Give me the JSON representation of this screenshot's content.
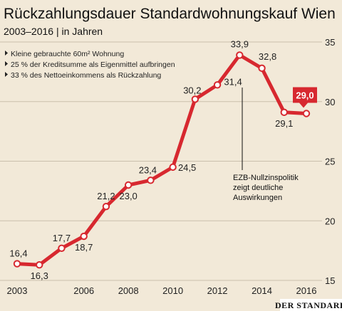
{
  "chart_data": {
    "type": "line",
    "title": "Rückzahlungsdauer Standardwohnungskauf Wien",
    "subtitle": "2003–2016 | in Jahren",
    "notes": [
      "Kleine gebrauchte 60m² Wohnung",
      "25 % der Kreditsumme als Eigenmittel aufbringen",
      "33 % des Nettoeinkommens als Rückzahlung"
    ],
    "x": [
      2003,
      2004,
      2005,
      2006,
      2007,
      2008,
      2009,
      2010,
      2011,
      2012,
      2013,
      2014,
      2015,
      2016
    ],
    "values": [
      16.4,
      16.3,
      17.7,
      18.7,
      21.2,
      23.0,
      23.4,
      24.5,
      30.2,
      31.4,
      33.9,
      32.8,
      29.1,
      29.0
    ],
    "labels": [
      "16,4",
      "16,3",
      "17,7",
      "18,7",
      "21,2",
      "23,0",
      "23,4",
      "24,5",
      "30,2",
      "31,4",
      "33,9",
      "32,8",
      "29,1",
      "29,0"
    ],
    "x_ticks": [
      "2003",
      "2006",
      "2008",
      "2010",
      "2012",
      "2014",
      "2016"
    ],
    "y_ticks": [
      "15",
      "20",
      "25",
      "30",
      "35"
    ],
    "ylim": [
      15,
      35
    ],
    "xlim": [
      2003,
      2016
    ],
    "grid": true,
    "y_axis_side": "right",
    "line_color": "#d7282f",
    "marker_color": "#ffffff",
    "highlight": {
      "label": "29,0",
      "color": "#d7282f"
    },
    "annotation": [
      "EZB-Nullzinspolitik",
      "zeigt deutliche",
      "Auswirkungen"
    ],
    "source": "DER STANDARD"
  }
}
